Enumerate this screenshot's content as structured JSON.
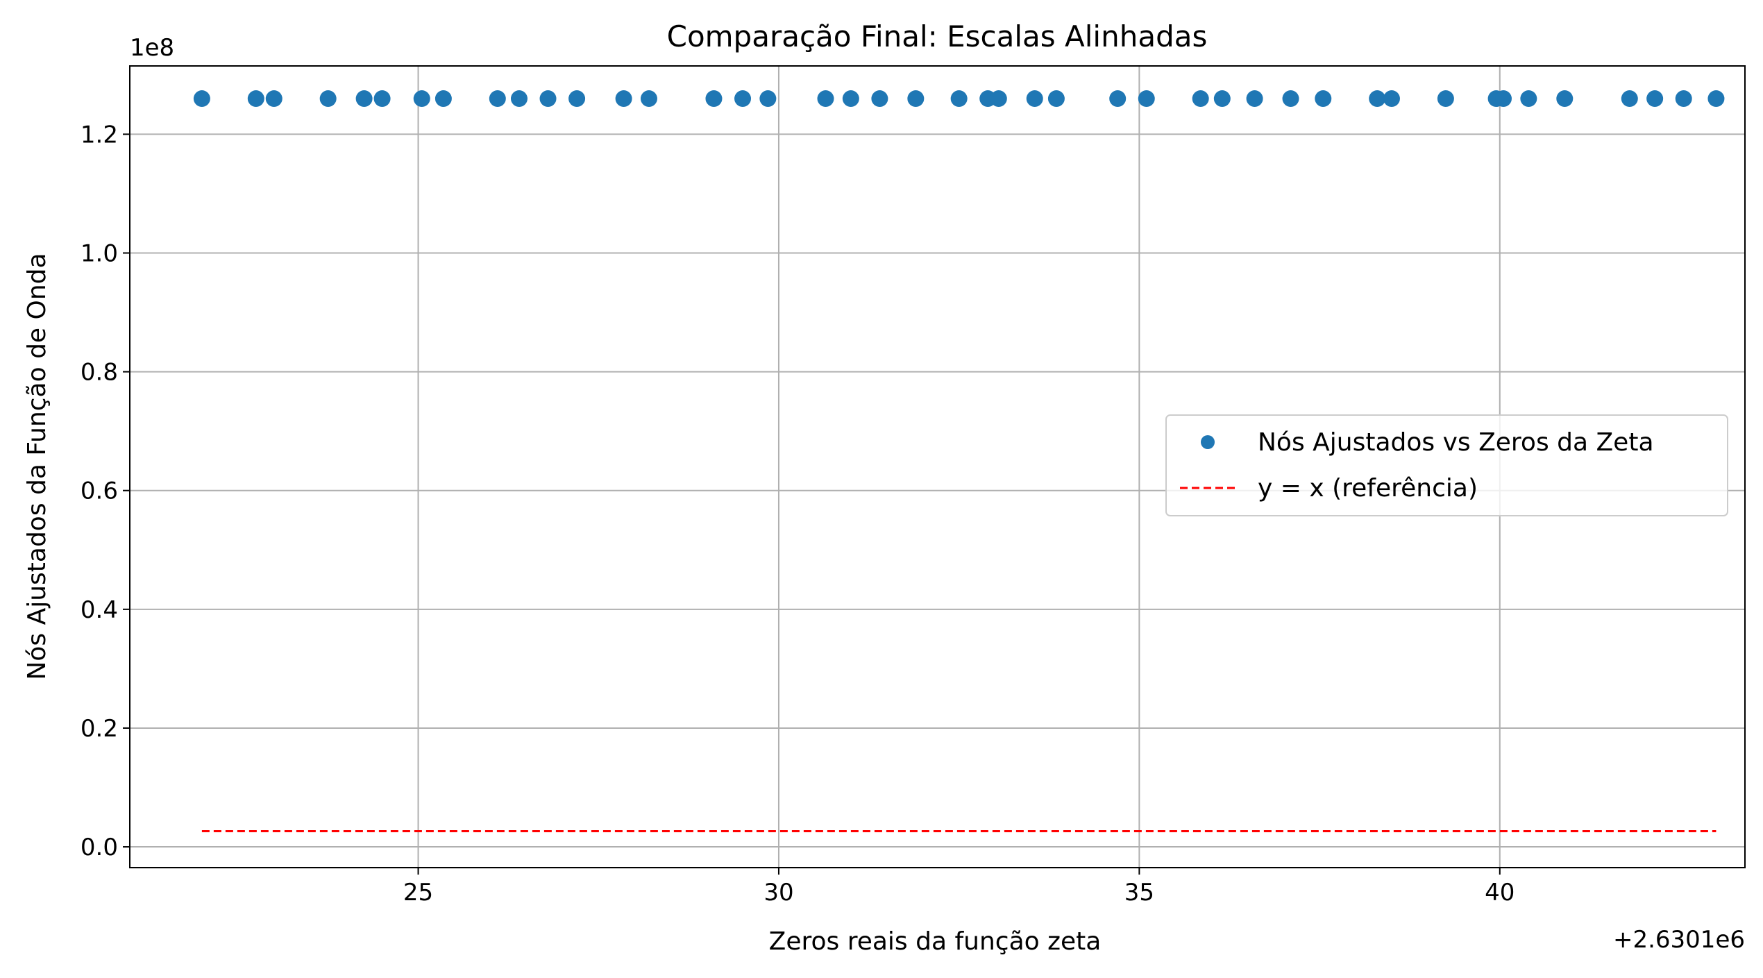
{
  "chart_data": {
    "type": "scatter",
    "title": "Comparação Final: Escalas Alinhadas",
    "xlabel": "Zeros reais da função zeta",
    "ylabel": "Nós Ajustados da Função de Onda",
    "x_offset_label": "+2.6301e6",
    "y_multiplier_label": "1e8",
    "xlim": [
      21,
      43.4
    ],
    "ylim": [
      -0.035,
      1.315
    ],
    "x_ticks": [
      25,
      30,
      35,
      40
    ],
    "x_tick_labels": [
      "25",
      "30",
      "35",
      "40"
    ],
    "y_ticks": [
      0.0,
      0.2,
      0.4,
      0.6,
      0.8,
      1.0,
      1.2
    ],
    "y_tick_labels": [
      "0.0",
      "0.2",
      "0.4",
      "0.6",
      "0.8",
      "1.0",
      "1.2"
    ],
    "grid": true,
    "legend_position": "center-right",
    "colors": {
      "points": "#1f77b4",
      "reference": "#ff0000",
      "grid": "#b0b0b0"
    },
    "series": [
      {
        "name": "Nós Ajustados vs Zeros da Zeta",
        "kind": "scatter",
        "x": [
          22.0,
          22.75,
          23.0,
          23.75,
          24.25,
          24.5,
          25.05,
          25.35,
          26.1,
          26.4,
          26.8,
          27.2,
          27.85,
          28.2,
          29.1,
          29.5,
          29.85,
          30.65,
          31.0,
          31.4,
          31.9,
          32.5,
          32.9,
          33.05,
          33.55,
          33.85,
          34.7,
          35.1,
          35.85,
          36.15,
          36.6,
          37.1,
          37.55,
          38.3,
          38.5,
          39.25,
          39.95,
          40.05,
          40.4,
          40.9,
          41.8,
          42.15,
          42.55,
          43.0
        ],
        "y": [
          1.26,
          1.26,
          1.26,
          1.26,
          1.26,
          1.26,
          1.26,
          1.26,
          1.26,
          1.26,
          1.26,
          1.26,
          1.26,
          1.26,
          1.26,
          1.26,
          1.26,
          1.26,
          1.26,
          1.26,
          1.26,
          1.26,
          1.26,
          1.26,
          1.26,
          1.26,
          1.26,
          1.26,
          1.26,
          1.26,
          1.26,
          1.26,
          1.26,
          1.26,
          1.26,
          1.26,
          1.26,
          1.26,
          1.26,
          1.26,
          1.26,
          1.26,
          1.26,
          1.26
        ]
      },
      {
        "name": "y = x (referência)",
        "kind": "line",
        "style": "dashed",
        "x": [
          22.0,
          43.0
        ],
        "y": [
          0.0263,
          0.0263
        ]
      }
    ]
  }
}
